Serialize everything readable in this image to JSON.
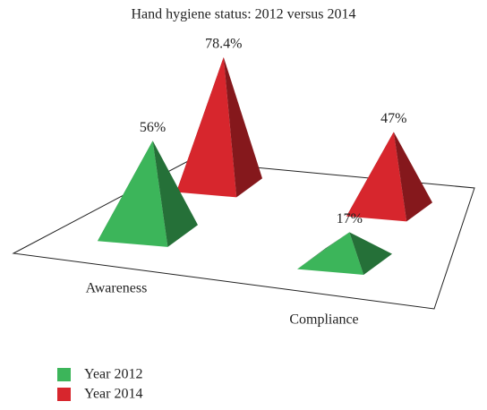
{
  "chart_data": {
    "type": "pyramid3d",
    "title": "Hand hygiene status: 2012 versus 2014",
    "categories": [
      "Awareness",
      "Compliance"
    ],
    "series": [
      {
        "name": "Year 2012",
        "color": "#3cb55a",
        "values": [
          56,
          17
        ],
        "value_labels": [
          "56%",
          "17%"
        ]
      },
      {
        "name": "Year 2014",
        "color": "#d7262d",
        "values": [
          78.4,
          47
        ],
        "value_labels": [
          "78.4%",
          "47%"
        ]
      }
    ]
  }
}
